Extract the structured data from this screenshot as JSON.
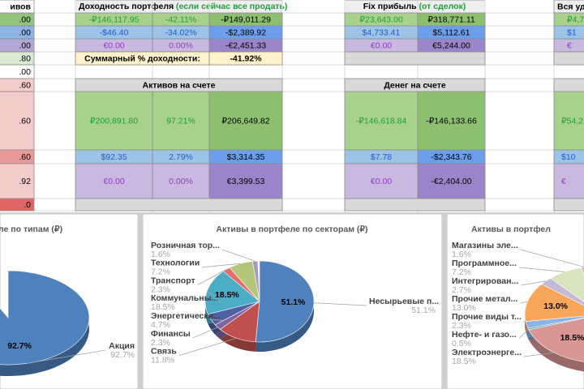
{
  "sheet": {
    "left_col": [
      "ивов",
      ".00",
      ".00",
      ".00",
      ".80",
      ".00",
      ".60",
      ".60",
      ".60",
      ".92",
      ".0"
    ],
    "portfolio": {
      "title_main": "Доходность портфеля",
      "title_note": "(если сейчас все продать)",
      "rows": [
        [
          "-₽146,117.95",
          "-42.11%",
          "-₽149,011.29"
        ],
        [
          "-$46.40",
          "-34.02%",
          "-$2,389.92"
        ],
        [
          "€0.00",
          "0.00%",
          "-€2,451.33"
        ]
      ],
      "total_label": "Суммарный % доходности:",
      "total_value": "-41.92%"
    },
    "assets": {
      "title": "Активов на счете",
      "rows": [
        [
          "₽200,891.80",
          "97.21%",
          "₽206,649.82"
        ],
        [
          "$92.35",
          "2.79%",
          "$3,314.35"
        ],
        [
          "€0.00",
          "0.00%",
          "€3,399.53"
        ]
      ]
    },
    "fix": {
      "title_main": "Fix прибыль",
      "title_note": "(от сделок)",
      "rows": [
        [
          "₽23,643.00",
          "₽318,771.11"
        ],
        [
          "$4,733.41",
          "$5,112.61"
        ],
        [
          "€0.00",
          "€5,244.00"
        ]
      ]
    },
    "cash": {
      "title": "Денег на счете",
      "rows": [
        [
          "-₽146,618.84",
          "-₽146,133.66"
        ],
        [
          "$7.78",
          "-$2,343.76"
        ],
        [
          "€0.00",
          "-€2,404.00"
        ]
      ]
    },
    "all": {
      "title": "Вся уд",
      "top": [
        "₽4,7",
        "$1",
        "€"
      ],
      "bottom": [
        "₽54,2",
        "$10",
        "€"
      ]
    }
  },
  "chart_data": [
    {
      "type": "pie",
      "title": "ле по типам (₽)",
      "categories": [
        "Акция"
      ],
      "values": [
        92.7
      ],
      "value_labels": [
        "92.7%"
      ],
      "colors": [
        "#4f81bd"
      ]
    },
    {
      "type": "pie",
      "title": "Активы в портфеле по секторам (₽)",
      "categories": [
        "Розничная тор...",
        "Технологии",
        "Транспорт",
        "Коммунальны...",
        "Энергетически...",
        "Финансы",
        "Связь",
        "Несырьевые п..."
      ],
      "values": [
        1.6,
        7.2,
        2.3,
        18.5,
        4.7,
        2.3,
        11.8,
        51.1
      ],
      "value_labels": [
        "1.6%",
        "7.2%",
        "2.3%",
        "18.5%",
        "4.7%",
        "2.3%",
        "11.8%",
        "51.1%"
      ],
      "colors": [
        "#a79bc4",
        "#b3c77b",
        "#e46c6c",
        "#4bacc6",
        "#4f5fa0",
        "#8064a2",
        "#c0504d",
        "#4f81bd"
      ]
    },
    {
      "type": "pie",
      "title": "Активы в портфел",
      "categories": [
        "Магазины эле...",
        "Программное...",
        "Интегрирован...",
        "Прочие метал...",
        "Прочие виды т...",
        "Нефте- и газо...",
        "Электроэнерге..."
      ],
      "values": [
        1.6,
        7.2,
        2.7,
        13.0,
        2.3,
        0.5,
        18.5
      ],
      "value_labels": [
        "1.6%",
        "7.2%",
        "2.7%",
        "13.0%",
        "2.3%",
        "0.5%",
        "18.5%"
      ],
      "colors": [
        "#e6b9b8",
        "#d7e4bd",
        "#c6b9d8",
        "#f9a65a",
        "#8db3e2",
        "#4bacc6",
        "#d99694"
      ]
    }
  ]
}
